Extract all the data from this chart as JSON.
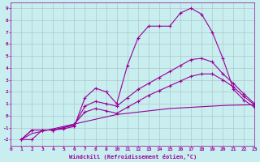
{
  "xlabel": "Windchill (Refroidissement éolien,°C)",
  "background_color": "#c8eef0",
  "grid_color": "#b0c8c8",
  "line_color": "#990099",
  "xlim": [
    0,
    23
  ],
  "ylim": [
    -2.5,
    9.5
  ],
  "xticks": [
    0,
    1,
    2,
    3,
    4,
    5,
    6,
    7,
    8,
    9,
    10,
    11,
    12,
    13,
    14,
    15,
    16,
    17,
    18,
    19,
    20,
    21,
    22,
    23
  ],
  "yticks": [
    -2,
    -1,
    0,
    1,
    2,
    3,
    4,
    5,
    6,
    7,
    8,
    9
  ],
  "line1_x": [
    1,
    2,
    3,
    4,
    5,
    6,
    7,
    8,
    9,
    10,
    11,
    12,
    13,
    14,
    15,
    16,
    17,
    18,
    19,
    20,
    21,
    22,
    23
  ],
  "line1_y": [
    -2.0,
    -2.0,
    -1.2,
    -1.2,
    -1.1,
    -0.9,
    1.5,
    2.3,
    2.0,
    1.0,
    4.2,
    6.5,
    7.5,
    7.5,
    7.5,
    8.6,
    9.0,
    8.5,
    7.0,
    4.8,
    2.2,
    1.3,
    0.7
  ],
  "line2_x": [
    1,
    2,
    3,
    4,
    5,
    6,
    7,
    8,
    9,
    10,
    11,
    12,
    13,
    14,
    15,
    16,
    17,
    18,
    19,
    20,
    21,
    22,
    23
  ],
  "line2_y": [
    -2.0,
    -1.2,
    -1.2,
    -1.2,
    -1.0,
    -0.8,
    0.8,
    1.2,
    1.0,
    0.8,
    1.5,
    2.2,
    2.7,
    3.2,
    3.7,
    4.2,
    4.7,
    4.8,
    4.5,
    3.5,
    2.7,
    1.8,
    1.0
  ],
  "line3_x": [
    1,
    2,
    3,
    4,
    5,
    6,
    7,
    8,
    9,
    10,
    11,
    12,
    13,
    14,
    15,
    16,
    17,
    18,
    19,
    20,
    21,
    22,
    23
  ],
  "line3_y": [
    -2.0,
    -1.2,
    -1.2,
    -1.2,
    -1.0,
    -0.7,
    0.3,
    0.6,
    0.4,
    0.2,
    0.7,
    1.2,
    1.7,
    2.1,
    2.5,
    2.9,
    3.3,
    3.5,
    3.5,
    3.0,
    2.4,
    1.6,
    0.9
  ],
  "line4_x": [
    1,
    2,
    3,
    4,
    5,
    6,
    7,
    8,
    9,
    10,
    11,
    12,
    13,
    14,
    15,
    16,
    17,
    18,
    19,
    20,
    21,
    22,
    23
  ],
  "line4_y": [
    -2.0,
    -1.5,
    -1.3,
    -1.1,
    -0.9,
    -0.7,
    -0.5,
    -0.3,
    -0.1,
    0.1,
    0.2,
    0.3,
    0.4,
    0.5,
    0.6,
    0.65,
    0.7,
    0.75,
    0.8,
    0.85,
    0.88,
    0.9,
    0.92
  ]
}
